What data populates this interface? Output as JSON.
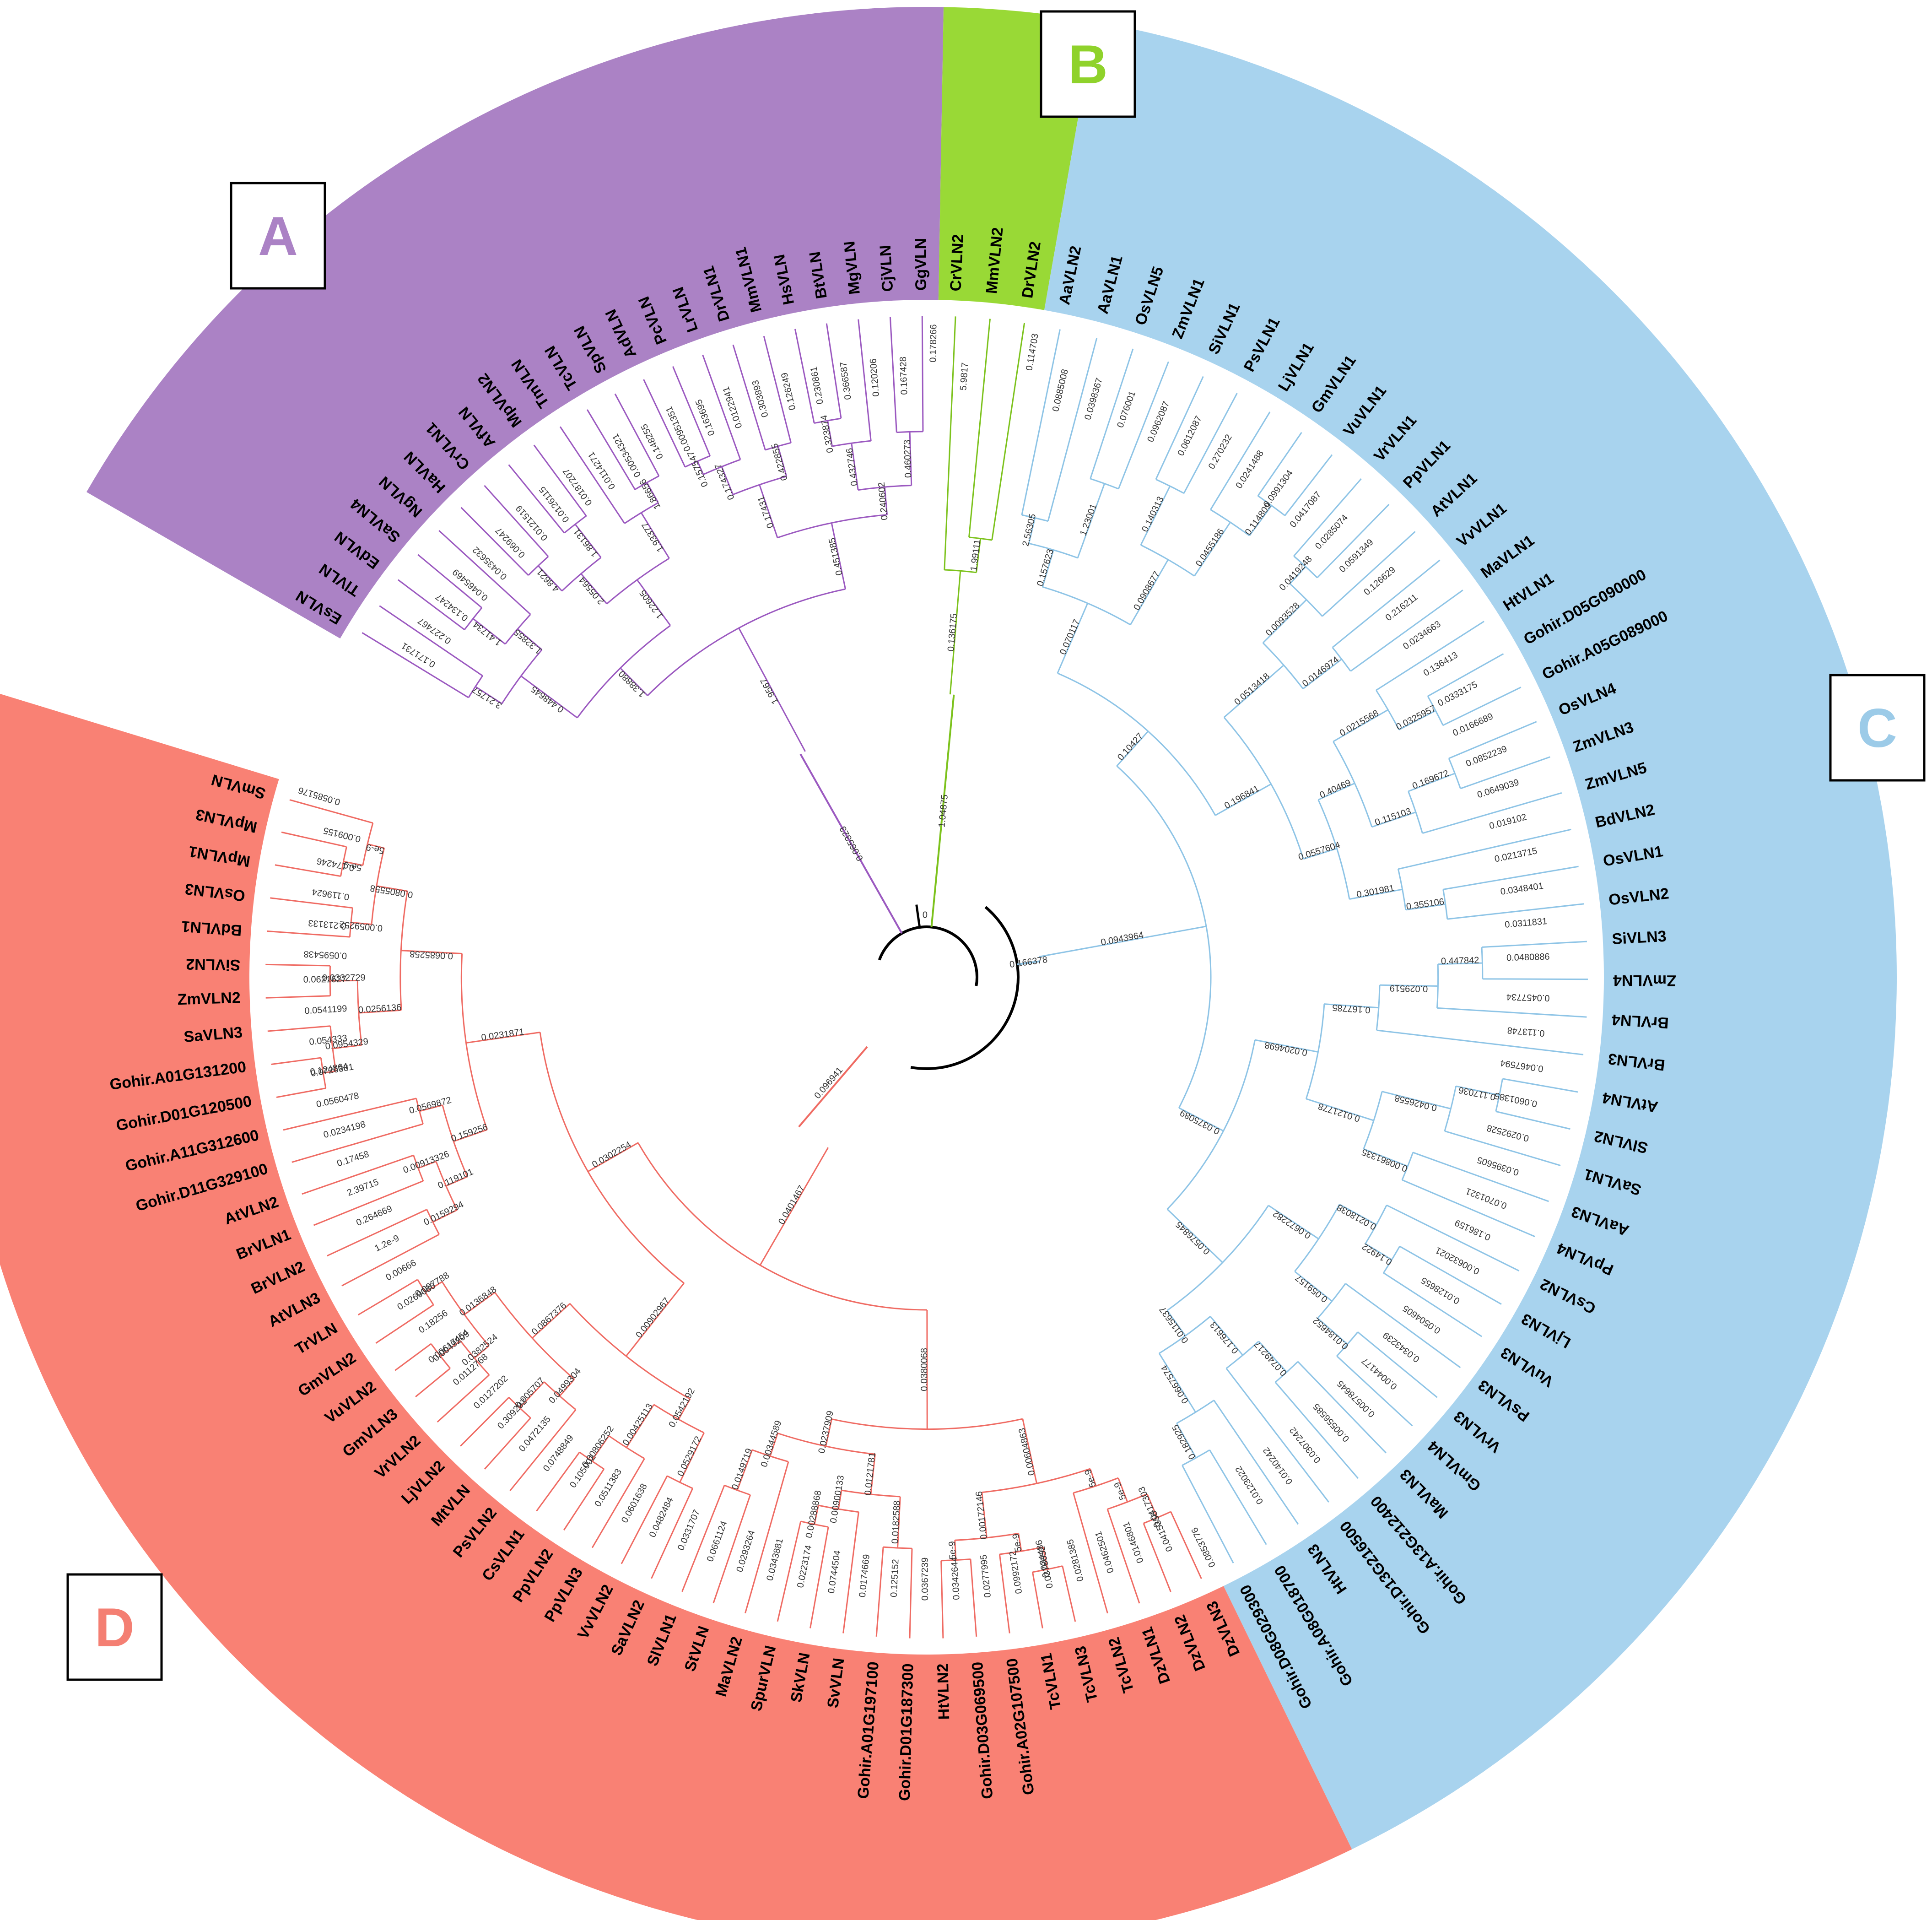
{
  "clade_labels": [
    {
      "id": "A",
      "text": "A",
      "color": "#ab82c5"
    },
    {
      "id": "B",
      "text": "B",
      "color": "#8fd22b"
    },
    {
      "id": "C",
      "text": "C",
      "color": "#9ccbe8"
    },
    {
      "id": "D",
      "text": "D",
      "color": "#f47f73"
    }
  ],
  "colors": {
    "clade_a_bg": "#ab82c5",
    "clade_a_line": "#9b59c0",
    "clade_b_bg": "#99d936",
    "clade_b_line": "#7cc21c",
    "clade_c_bg": "#a8d3ee",
    "clade_c_line": "#8ec4e6",
    "clade_d_bg": "#f98174",
    "clade_d_line": "#ef6b63",
    "root_line": "#000000"
  },
  "root": {
    "label": "0",
    "branches": [
      "0.14867",
      "0.273426",
      "0.096941"
    ]
  },
  "clades": [
    {
      "id": "A",
      "stem_label": "0.065323",
      "leaves": [
        "EsVLN",
        "TlVLN",
        "EdVLN",
        "SaVLN4",
        "NgVLN",
        "HaVLN",
        "CrVLN1",
        "AfVLN",
        "MpVLN2",
        "TmVLN",
        "TcVLN",
        "SpVLN",
        "AdVLN",
        "PcVLN",
        "LrVLN",
        "DrVLN1",
        "MmVLN1",
        "HsVLN",
        "BtVLN",
        "MgVLN",
        "CjVLN",
        "GgVLN"
      ],
      "branch_labels": [
        "3.21757",
        "1.41734",
        "1.32855",
        "0.448645",
        "4.8621",
        "1.86131",
        "2.05564",
        "1.86656",
        "1.93377",
        "1.22605",
        "1.38880",
        "0.157547",
        "0.174327",
        "0.422855",
        "0.17431",
        "0.323874",
        "0.432746",
        "0.460273",
        "0.240602",
        "0.451385",
        "1.9567",
        "0.178266",
        "0.171731",
        "0.227467",
        "0.134247",
        "0.0465469",
        "0.0435632",
        "0.069247",
        "0.0121519",
        "0.0126115",
        "0.0187207",
        "0.0114271",
        "0.00534321",
        "0.148255",
        "0.00951351",
        "0.163695",
        "0.0122941",
        "0.303893",
        "0.126249",
        "0.230861",
        "0.366587",
        "0.120206",
        "0.167428"
      ]
    },
    {
      "id": "B",
      "stem_label": "1.04875",
      "leaves": [
        "CrVLN2",
        "MmVLN2",
        "DrVLN2"
      ],
      "branch_labels": [
        "1.99111",
        "0.136175",
        "0.114703",
        "5.9817"
      ]
    },
    {
      "id": "C",
      "stem_label": "0.166378",
      "leaves": [
        "AaVLN2",
        "AaVLN1",
        "OsVLN5",
        "ZmVLN1",
        "SiVLN1",
        "PsVLN1",
        "LjVLN1",
        "GmVLN1",
        "VuVLN1",
        "VrVLN1",
        "PpVLN1",
        "AtVLN1",
        "VvVLN1",
        "MaVLN1",
        "HtVLN1",
        "Gohir.D05G090000",
        "Gohir.A05G089000",
        "OsVLN4",
        "ZmVLN3",
        "ZmVLN5",
        "BdVLN2",
        "OsVLN1",
        "OsVLN2",
        "SiVLN3",
        "ZmVLN4",
        "BrVLN4",
        "BrVLN3",
        "AtVLN4",
        "SlVLN2",
        "SaVLN1",
        "AaVLN3",
        "PpVLN4",
        "CsVLN2",
        "LjVLN3",
        "VuVLN3",
        "PsVLN3",
        "VrVLN3",
        "GmVLN4",
        "MaVLN3",
        "Gohir.A13G212400",
        "Gohir.D13G216500",
        "HtVLN3",
        "Gohir.A08G018700",
        "Gohir.D08G029300"
      ],
      "branch_labels": [
        "2.56305",
        "1.23001",
        "0.157623",
        "0.140313",
        "0.114809",
        "0.0455186",
        "0.0908677",
        "0.070117",
        "0.0419248",
        "0.0093528",
        "0.0146974",
        "0.0513418",
        "0.0325957",
        "0.0215568",
        "0.169672",
        "0.115103",
        "0.40469",
        "0.355106",
        "0.301981",
        "0.0557604",
        "0.196841",
        "0.10427",
        "0.447842",
        "0.029519",
        "0.167785",
        "0.117036",
        "0.0426558",
        "0.00861335",
        "0.0121778",
        "0.0204698",
        "0.14922",
        "0.0218038",
        "0.0184652",
        "0.059157",
        "0.0672282",
        "0.0749217",
        "0.176613",
        "0.182925",
        "0.0667574",
        "0.0115637",
        "0.0576845",
        "0.0375089",
        "0.0943964",
        "0.0853776",
        "0.0885008",
        "0.0398367",
        "0.076001",
        "0.0962087",
        "0.0612087",
        "0.270232",
        "0.0241488",
        "0.0991304",
        "0.0417087",
        "0.0285074",
        "0.0591349",
        "0.126629",
        "0.216211",
        "0.0234663",
        "0.136413",
        "0.0333175",
        "0.0166689",
        "0.0852239",
        "0.0649039",
        "0.019102",
        "0.0213715",
        "0.0348401",
        "0.0311831",
        "0.0480886",
        "0.0457734",
        "0.113748",
        "0.0467594",
        "0.0601385",
        "0.0292528",
        "0.0395605",
        "0.0701321",
        "0.186159",
        "0.00632021",
        "0.0128655",
        "0.0504605",
        "0.0343239",
        "0.0044177",
        "0.00578645",
        "0.00556585",
        "0.0307242",
        "0.0140242",
        "0.0123022"
      ]
    },
    {
      "id": "D",
      "stem_label": "0.096941",
      "leaves": [
        "DzVLN3",
        "DzVLN2",
        "DzVLN1",
        "TcVLN2",
        "TcVLN3",
        "TcVLN1",
        "Gohir.A02G107500",
        "Gohir.D03G069500",
        "HtVLN2",
        "Gohir.D01G187300",
        "Gohir.A01G197100",
        "SvVLN",
        "SkVLN",
        "SpurVLN",
        "MaVLN2",
        "StVLN",
        "SlVLN1",
        "SaVLN2",
        "VvVLN2",
        "PpVLN3",
        "PpVLN2",
        "CsVLN1",
        "PsVLN2",
        "MtVLN",
        "LjVLN2",
        "VrVLN2",
        "GmVLN3",
        "VuVLN2",
        "GmVLN2",
        "TrVLN",
        "AtVLN3",
        "BrVLN2",
        "BrVLN1",
        "AtVLN2",
        "Gohir.D11G329100",
        "Gohir.A11G312600",
        "Gohir.D01G120500",
        "Gohir.A01G131200",
        "SaVLN3",
        "ZmVLN2",
        "SiVLN2",
        "BdVLN1",
        "OsVLN3",
        "MpVLN1",
        "MpVLN3",
        "SmVLN"
      ],
      "branch_labels": [
        "0.0417303",
        "5e-9",
        "5e-9",
        "0.034486",
        "5e-9",
        "5e-9",
        "0.00172146",
        "0.00604863",
        "0.0182588",
        "0.00288868",
        "0.00900133",
        "0.0121781",
        "0.0149719",
        "0.00344589",
        "0.0237909",
        "0.0380068",
        "0.0529172",
        "0.00806252",
        "0.00425113",
        "0.0542192",
        "0.005707",
        "0.0499304",
        "0.00617454",
        "0.0382524",
        "0.097788",
        "0.0136848",
        "0.0867376",
        "0.00902967",
        "0.0159294",
        "0.00913326",
        "0.119101",
        "0.0569872",
        "0.159256",
        "0.124864",
        "0.0954329",
        "0.0332729",
        "0.0256136",
        "0.0059252",
        "5e-9",
        "5e-9",
        "0.0805558",
        "0.0685258",
        "0.0231871",
        "0.0302254",
        "0.0401467",
        "0.0585176",
        "0.0415358",
        "0.0146801",
        "0.0462501",
        "0.0281385",
        "0.0378652",
        "0.0992172",
        "0.0277995",
        "0.0342644",
        "0.0367239",
        "0.125152",
        "0.0174669",
        "0.0744504",
        "0.0223174",
        "0.0343881",
        "0.0293264",
        "0.0661124",
        "0.0331707",
        "0.0482484",
        "0.0601638",
        "0.0511383",
        "0.105002",
        "0.0748849",
        "0.0472135",
        "0.309292",
        "0.0127202",
        "0.0112768",
        "0.0049209",
        "0.18256",
        "0.0269086",
        "0.00666",
        "1.2e-9",
        "0.264669",
        "2.39715",
        "0.17458",
        "0.0234198",
        "0.0560478",
        "0.0726381",
        "0.054333",
        "0.0541199",
        "0.0621627",
        "0.0595438",
        "0.213133",
        "0.119624",
        "0.174246",
        "0.009155"
      ]
    }
  ]
}
